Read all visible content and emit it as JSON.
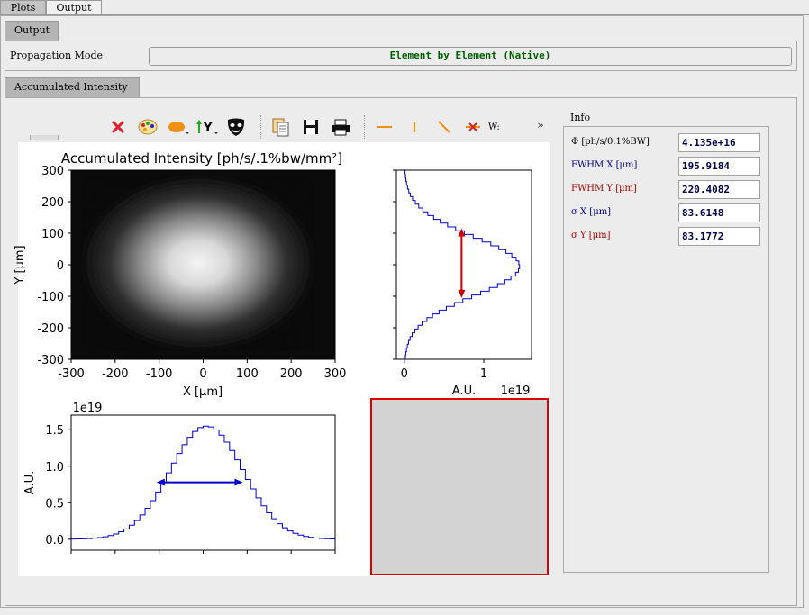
{
  "tabs": [
    {
      "label": "Plots",
      "active": false
    },
    {
      "label": "Output",
      "active": true
    }
  ],
  "output_tab": {
    "label": "Output"
  },
  "propagation": {
    "label": "Propagation Mode",
    "value": "Element by Element (Native)"
  },
  "intensity_tab": {
    "label": "Accumulated Intensity"
  },
  "toolbar": {
    "icons": [
      "close-x-icon",
      "palette-icon",
      "ellipse-dropdown-icon",
      "axis-y-dropdown-icon",
      "mask-icon",
      "copy-icon",
      "save-icon",
      "print-icon",
      "hline-icon",
      "vline-icon",
      "diag-line-icon",
      "delete-line-icon"
    ],
    "w_label": "W:",
    "more_label": "»"
  },
  "info": {
    "title": "Info",
    "rows": [
      {
        "label": "Φ [ph/s/0.1%BW]",
        "value": "4.135e+16",
        "color": "#000000"
      },
      {
        "label": "FWHM X [μm]",
        "value": "195.9184",
        "color": "#00008b"
      },
      {
        "label": "FWHM Y [μm]",
        "value": "220.4082",
        "color": "#b00000"
      },
      {
        "label": "σ X [μm]",
        "value": "83.6148",
        "color": "#00008b"
      },
      {
        "label": "σ Y [μm]",
        "value": "83.1772",
        "color": "#b00000"
      }
    ]
  },
  "chart_data": [
    {
      "type": "heatmap",
      "title": "Accumulated Intensity [ph/s/.1%bw/mm²]",
      "xlabel": "X [μm]",
      "ylabel": "Y [μm]",
      "xlim": [
        -300,
        300
      ],
      "ylim": [
        -300,
        300
      ],
      "xticks": [
        -300,
        -200,
        -100,
        0,
        100,
        200,
        300
      ],
      "yticks": [
        300,
        200,
        100,
        0,
        -100,
        -200,
        -300
      ],
      "colormap": "gray",
      "center": [
        0,
        0
      ],
      "sigma_x": 83.6148,
      "sigma_y": 83.1772
    },
    {
      "type": "line",
      "name": "histogram-x",
      "ylabel": "A.U.",
      "offset_label": "1e19",
      "yticks": [
        0.0,
        0.5,
        1.0,
        1.5
      ],
      "ylim": [
        -0.15,
        1.7
      ],
      "xlim": [
        -300,
        300
      ],
      "peak": 1.55,
      "fwhm": 195.9184,
      "fwhm_level": 0.78,
      "color": "#0000cc",
      "arrow_color": "#0000cc"
    },
    {
      "type": "line",
      "name": "histogram-y",
      "xlabel": "A.U.",
      "offset_label": "1e19",
      "xticks": [
        0,
        1
      ],
      "xlim": [
        -0.1,
        1.6
      ],
      "ylim": [
        -300,
        300
      ],
      "peak": 1.45,
      "fwhm": 220.4082,
      "fwhm_level": 0.72,
      "color": "#0000cc",
      "arrow_color": "#cc0000"
    }
  ]
}
